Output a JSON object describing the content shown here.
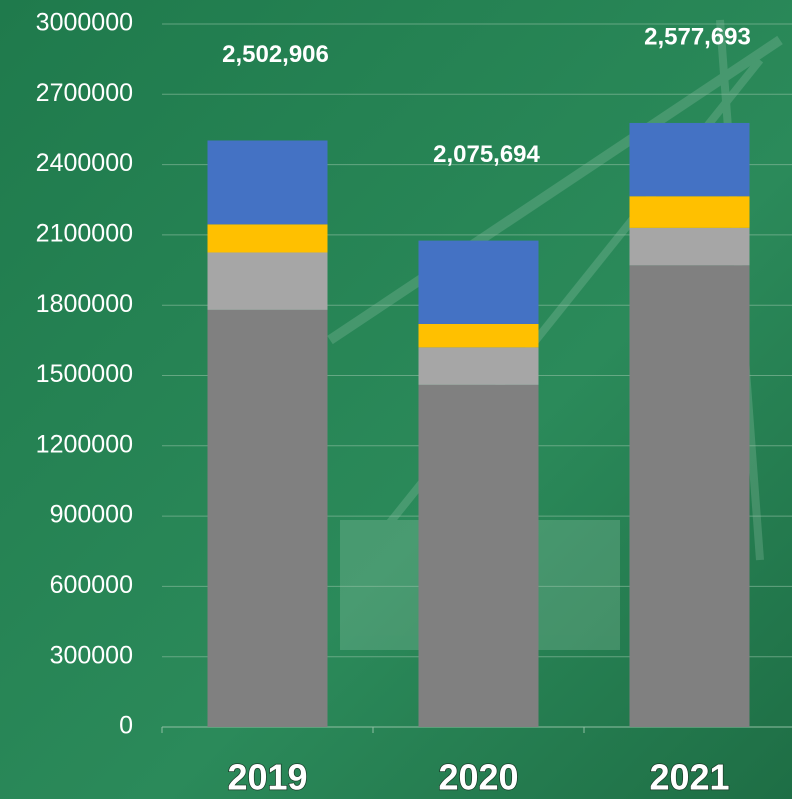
{
  "chart_data": {
    "type": "stacked_bar",
    "categories": [
      "2019",
      "2020",
      "2021"
    ],
    "series": [
      {
        "color": "#808080",
        "values": [
          1780000,
          1460000,
          1970000
        ]
      },
      {
        "color": "#a6a6a6",
        "values": [
          245000,
          160000,
          160000
        ]
      },
      {
        "color": "#ffc000",
        "values": [
          120000,
          100000,
          135000
        ]
      },
      {
        "color": "#4472c4",
        "values": [
          357906,
          355694,
          312693
        ]
      }
    ],
    "totals": [
      2502906,
      2075694,
      2577693
    ],
    "total_labels": [
      "2,502,906",
      "2,075,694",
      "2,577,693"
    ],
    "ylim": [
      0,
      3000000
    ],
    "yticks": [
      0,
      300000,
      600000,
      900000,
      1200000,
      1500000,
      1800000,
      2100000,
      2400000,
      2700000,
      3000000
    ],
    "grid": true
  }
}
